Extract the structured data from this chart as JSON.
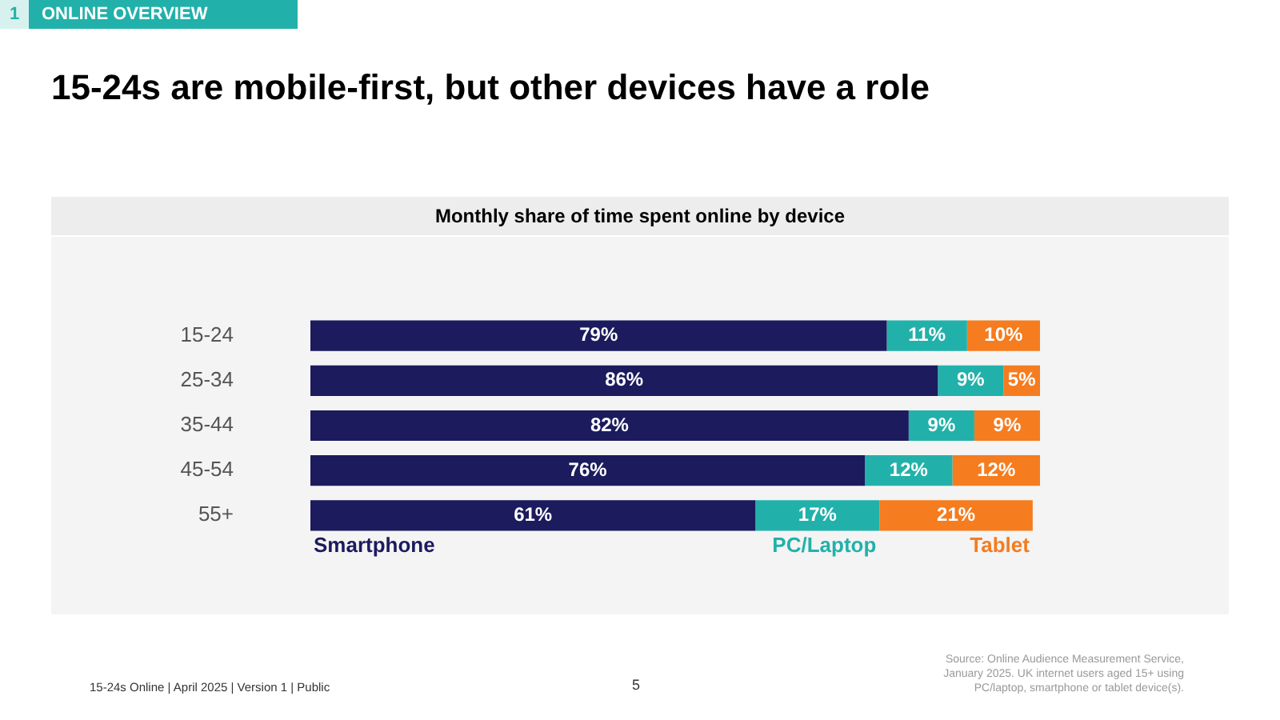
{
  "chart_data": {
    "type": "bar",
    "orientation": "horizontal",
    "stacked": true,
    "title": "15-24s are mobile-first, but other devices have a role",
    "subtitle": "Monthly share of time spent online by device",
    "categories": [
      "15-24",
      "25-34",
      "35-44",
      "45-54",
      "55+"
    ],
    "series": [
      {
        "name": "Smartphone",
        "color": "#1b1b5e",
        "values": [
          79,
          86,
          82,
          76,
          61
        ],
        "value_labels": [
          "79%",
          "86%",
          "82%",
          "76%",
          "61%"
        ]
      },
      {
        "name": "PC/Laptop",
        "color": "#22b1aa",
        "values": [
          11,
          9,
          9,
          12,
          17
        ],
        "value_labels": [
          "11%",
          "9%",
          "9%",
          "12%",
          "17%"
        ]
      },
      {
        "name": "Tablet",
        "color": "#f57c1f",
        "values": [
          10,
          5,
          9,
          12,
          21
        ],
        "value_labels": [
          "10%",
          "5%",
          "9%",
          "12%",
          "21%"
        ]
      }
    ],
    "annotations": [
      "1",
      "ONLINE OVERVIEW",
      "15-24s Online | April 2025 | Version 1 | Public",
      "5",
      "Source: Online Audience Measurement Service, January 2025. UK internet users aged 15+ using PC/laptop, smartphone or tablet device(s)."
    ]
  }
}
